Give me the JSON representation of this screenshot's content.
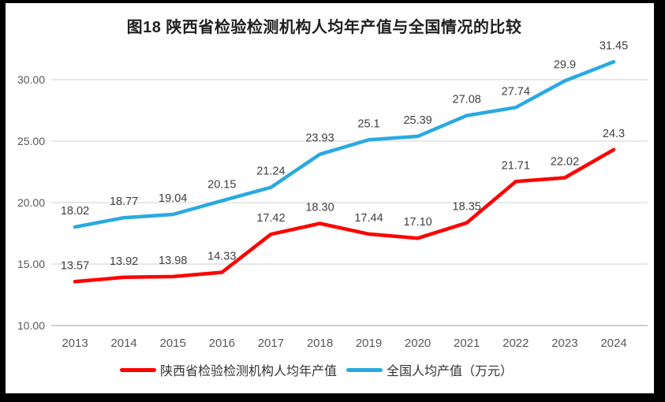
{
  "title": "图18 陕西省检验检测机构人均年产值与全国情况的比较",
  "chart_data": {
    "type": "line",
    "title": "图18 陕西省检验检测机构人均年产值与全国情况的比较",
    "categories": [
      "2013",
      "2014",
      "2015",
      "2016",
      "2017",
      "2018",
      "2019",
      "2020",
      "2021",
      "2022",
      "2023",
      "2024"
    ],
    "series": [
      {
        "id": "shaanxi",
        "name": "陕西省检验检测机构人均年产值",
        "color": "#ff0000",
        "values": [
          13.57,
          13.92,
          13.98,
          14.33,
          17.42,
          18.3,
          17.44,
          17.1,
          18.35,
          21.71,
          22.02,
          24.3
        ],
        "labels": [
          "13.57",
          "13.92",
          "13.98",
          "14.33",
          "17.42",
          "18.30",
          "17.44",
          "17.10",
          "18.35",
          "21.71",
          "22.02",
          "24.3"
        ]
      },
      {
        "id": "national",
        "name": "全国人均产值（万元）",
        "color": "#29a9e1",
        "values": [
          18.02,
          18.77,
          19.04,
          20.15,
          21.24,
          23.93,
          25.1,
          25.39,
          27.08,
          27.74,
          29.9,
          31.45
        ],
        "labels": [
          "18.02",
          "18.77",
          "19.04",
          "20.15",
          "21.24",
          "23.93",
          "25.1",
          "25.39",
          "27.08",
          "27.74",
          "29.9",
          "31.45"
        ]
      }
    ],
    "y_axis": {
      "ticks": [
        {
          "v": 30,
          "label": "30.00"
        },
        {
          "v": 25,
          "label": "25.00"
        },
        {
          "v": 20,
          "label": "20.00"
        },
        {
          "v": 15,
          "label": "15.00"
        },
        {
          "v": 10,
          "label": "10.00"
        }
      ],
      "min": 10,
      "max": 33
    },
    "grid": true,
    "legend_position": "bottom",
    "style": {
      "grid_color": "#d9d9d9",
      "axis_color": "#bfbfbf",
      "tick_text_color": "#595959",
      "data_label_color": "#404040",
      "background": "#ffffff",
      "frame_color": "#000000"
    }
  }
}
